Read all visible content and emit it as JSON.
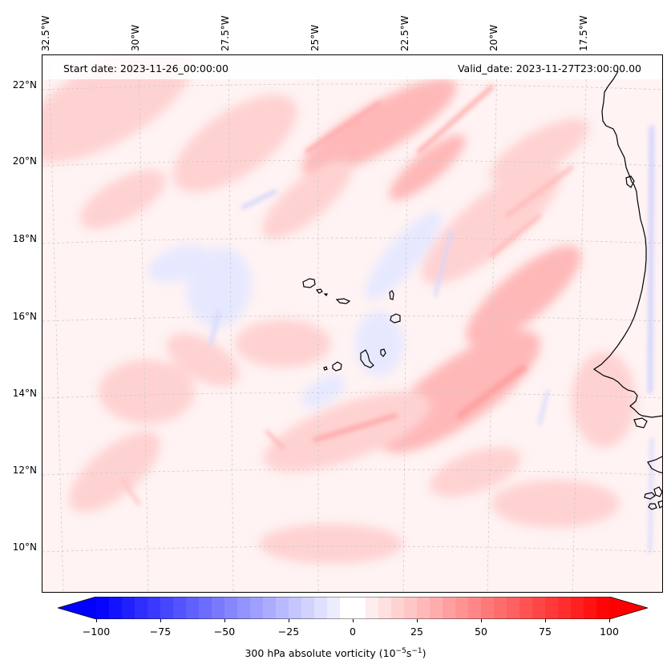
{
  "map": {
    "start_date": "Start date: 2023-11-26_00:00:00",
    "valid_date": "Valid_date: 2023-11-27T23:00:00.00",
    "lon_labels": [
      "32.5°W",
      "30°W",
      "27.5°W",
      "25°W",
      "22.5°W",
      "20°W",
      "17.5°W"
    ],
    "lat_labels": [
      "22°N",
      "20°N",
      "18°N",
      "16°N",
      "14°N",
      "12°N",
      "10°N"
    ],
    "coastline_color": "#000000",
    "gridline_color": "#c8c8c8"
  },
  "colorbar": {
    "min": -100,
    "max": 100,
    "extend": "both",
    "colors": {
      "negative": "#0000ff",
      "zero": "#ffffff",
      "positive": "#ff0000"
    },
    "ticks": [
      "−100",
      "−75",
      "−50",
      "−25",
      "0",
      "25",
      "50",
      "75",
      "100"
    ],
    "label_main": "300 hPa absolute vorticity (10",
    "label_exp1": "−5",
    "label_mid": "s",
    "label_exp2": "−1",
    "label_end": ")"
  }
}
